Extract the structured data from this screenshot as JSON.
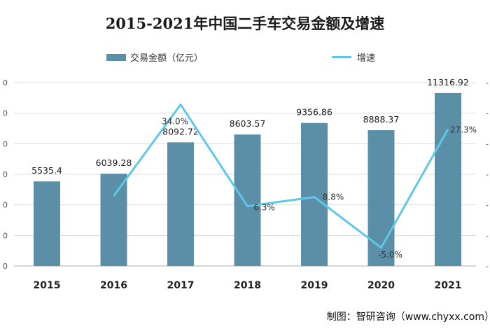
{
  "chart_data": {
    "type": "bar+line",
    "title": "2015-2021年中国二手车交易金额及增速",
    "categories": [
      "2015",
      "2016",
      "2017",
      "2018",
      "2019",
      "2020",
      "2021"
    ],
    "series": [
      {
        "name": "交易金额（亿元）",
        "type": "bar",
        "axis": "left",
        "values": [
          5535.4,
          6039.28,
          8092.72,
          8603.57,
          9356.86,
          8888.37,
          11316.92
        ],
        "labels": [
          "5535.4",
          "6039.28",
          "8092.72",
          "8603.57",
          "9356.86",
          "8888.37",
          "11316.92"
        ]
      },
      {
        "name": "增速",
        "type": "line",
        "axis": "right",
        "values": [
          null,
          9.1,
          34.0,
          6.3,
          8.8,
          -5.0,
          27.3
        ],
        "labels": [
          "",
          "",
          "34.0%",
          "6.3%",
          "8.8%",
          "-5.0%",
          "27.3%"
        ]
      }
    ],
    "left_ylim": [
      0,
      12000
    ],
    "right_ylim": [
      -10,
      40
    ],
    "colors": {
      "bar": "#5b8fa8",
      "line": "#5fc8e6"
    },
    "grid": true
  },
  "credit": "制图：智研咨询（www.chyxx.com）"
}
